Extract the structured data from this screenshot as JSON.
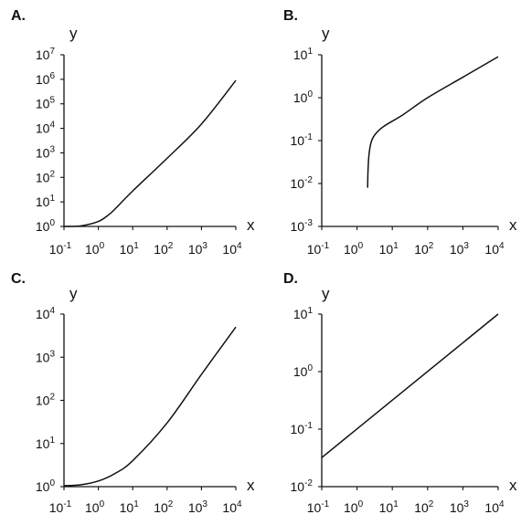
{
  "chart_data": [
    {
      "type": "line",
      "panel_label": "A.",
      "xlabel": "x",
      "ylabel": "y",
      "x_scale": "log",
      "y_scale": "log",
      "xlim": [
        0.1,
        10000
      ],
      "ylim": [
        1,
        10000000
      ],
      "x_ticks": [
        {
          "base": "10",
          "exp": "-1"
        },
        {
          "base": "10",
          "exp": "0"
        },
        {
          "base": "10",
          "exp": "1"
        },
        {
          "base": "10",
          "exp": "2"
        },
        {
          "base": "10",
          "exp": "3"
        },
        {
          "base": "10",
          "exp": "4"
        }
      ],
      "y_ticks": [
        {
          "base": "10",
          "exp": "0"
        },
        {
          "base": "10",
          "exp": "1"
        },
        {
          "base": "10",
          "exp": "2"
        },
        {
          "base": "10",
          "exp": "3"
        },
        {
          "base": "10",
          "exp": "4"
        },
        {
          "base": "10",
          "exp": "5"
        },
        {
          "base": "10",
          "exp": "6"
        },
        {
          "base": "10",
          "exp": "7"
        }
      ],
      "series": [
        {
          "x": [
            0.1,
            0.3,
            1,
            2,
            3,
            10,
            100,
            1000,
            10000
          ],
          "y": [
            1,
            1.05,
            1.6,
            3,
            5,
            28,
            600,
            15000,
            900000
          ]
        }
      ]
    },
    {
      "type": "line",
      "panel_label": "B.",
      "xlabel": "x",
      "ylabel": "y",
      "x_scale": "log",
      "y_scale": "log",
      "xlim": [
        0.1,
        10000
      ],
      "ylim": [
        0.001,
        10
      ],
      "x_ticks": [
        {
          "base": "10",
          "exp": "-1"
        },
        {
          "base": "10",
          "exp": "0"
        },
        {
          "base": "10",
          "exp": "1"
        },
        {
          "base": "10",
          "exp": "2"
        },
        {
          "base": "10",
          "exp": "3"
        },
        {
          "base": "10",
          "exp": "4"
        }
      ],
      "y_ticks": [
        {
          "base": "10",
          "exp": "-3"
        },
        {
          "base": "10",
          "exp": "-2"
        },
        {
          "base": "10",
          "exp": "-1"
        },
        {
          "base": "10",
          "exp": "0"
        },
        {
          "base": "10",
          "exp": "1"
        }
      ],
      "series": [
        {
          "x": [
            2,
            2.05,
            2.2,
            2.6,
            3.5,
            6,
            20,
            100,
            1000,
            10000
          ],
          "y": [
            0.008,
            0.02,
            0.05,
            0.1,
            0.15,
            0.22,
            0.4,
            1,
            3,
            9
          ]
        }
      ]
    },
    {
      "type": "line",
      "panel_label": "C.",
      "xlabel": "x",
      "ylabel": "y",
      "x_scale": "log",
      "y_scale": "log",
      "xlim": [
        0.1,
        10000
      ],
      "ylim": [
        1,
        10000
      ],
      "x_ticks": [
        {
          "base": "10",
          "exp": "-1"
        },
        {
          "base": "10",
          "exp": "0"
        },
        {
          "base": "10",
          "exp": "1"
        },
        {
          "base": "10",
          "exp": "2"
        },
        {
          "base": "10",
          "exp": "3"
        },
        {
          "base": "10",
          "exp": "4"
        }
      ],
      "y_ticks": [
        {
          "base": "10",
          "exp": "0"
        },
        {
          "base": "10",
          "exp": "1"
        },
        {
          "base": "10",
          "exp": "2"
        },
        {
          "base": "10",
          "exp": "3"
        },
        {
          "base": "10",
          "exp": "4"
        }
      ],
      "series": [
        {
          "x": [
            0.1,
            0.3,
            1,
            3,
            10,
            100,
            1000,
            10000
          ],
          "y": [
            1.05,
            1.1,
            1.35,
            2,
            4,
            30,
            400,
            5000
          ]
        }
      ]
    },
    {
      "type": "line",
      "panel_label": "D.",
      "xlabel": "x",
      "ylabel": "y",
      "x_scale": "log",
      "y_scale": "log",
      "xlim": [
        0.1,
        10000
      ],
      "ylim": [
        0.01,
        10
      ],
      "x_ticks": [
        {
          "base": "10",
          "exp": "-1"
        },
        {
          "base": "10",
          "exp": "0"
        },
        {
          "base": "10",
          "exp": "1"
        },
        {
          "base": "10",
          "exp": "2"
        },
        {
          "base": "10",
          "exp": "3"
        },
        {
          "base": "10",
          "exp": "4"
        }
      ],
      "y_ticks": [
        {
          "base": "10",
          "exp": "-2"
        },
        {
          "base": "10",
          "exp": "-1"
        },
        {
          "base": "10",
          "exp": "0"
        },
        {
          "base": "10",
          "exp": "1"
        }
      ],
      "series": [
        {
          "x": [
            0.1,
            10000
          ],
          "y": [
            0.032,
            10
          ]
        }
      ]
    }
  ]
}
